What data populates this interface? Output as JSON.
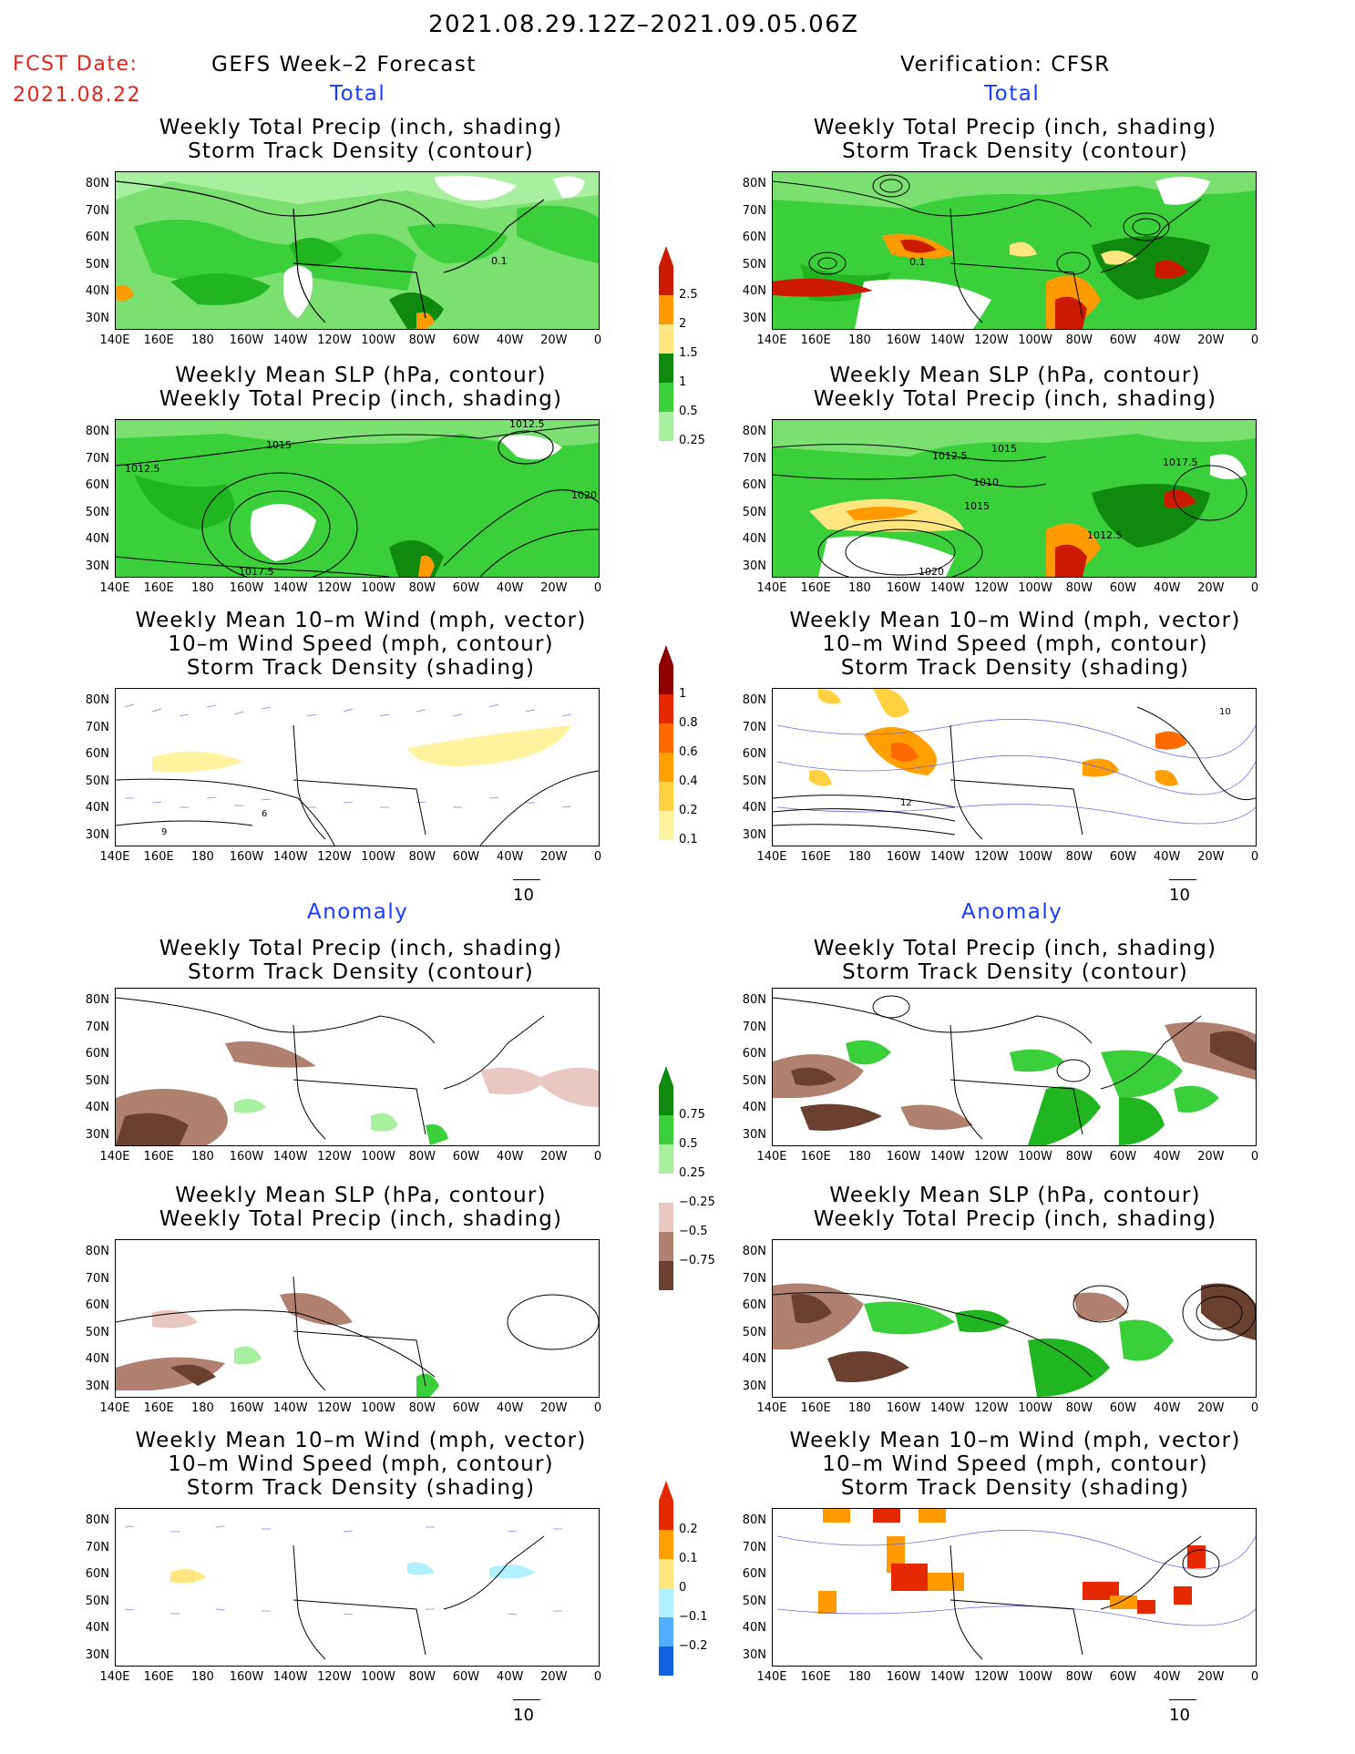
{
  "header": {
    "date_range": "2021.08.29.12Z–2021.09.05.06Z",
    "fcst_label": "FCST Date:",
    "fcst_date": "2021.08.22",
    "left_title": "GEFS Week–2 Forecast",
    "right_title": "Verification: CFSR",
    "total_label": "Total",
    "anomaly_label": "Anomaly"
  },
  "panel_titles": {
    "precip_track": [
      "Weekly Total Precip (inch, shading)",
      "Storm Track Density (contour)"
    ],
    "slp_precip": [
      "Weekly Mean SLP (hPa, contour)",
      "Weekly Total Precip (inch, shading)"
    ],
    "wind_track": [
      "Weekly Mean 10–m Wind (mph, vector)",
      "10–m Wind Speed (mph, contour)",
      "Storm Track Density (shading)"
    ]
  },
  "lat_labels": [
    "80N",
    "70N",
    "60N",
    "50N",
    "40N",
    "30N"
  ],
  "lon_labels": [
    "140E",
    "160E",
    "180",
    "160W",
    "140W",
    "120W",
    "100W",
    "80W",
    "60W",
    "40W",
    "20W",
    "0"
  ],
  "vector_ref": "10",
  "colorbars": {
    "precip_total": {
      "labels": [
        "2.5",
        "2",
        "1.5",
        "1",
        "0.5",
        "0.25"
      ],
      "colors": [
        "#cc1a00",
        "#ff9a00",
        "#ffe680",
        "#0f8a0f",
        "#3ccf3c",
        "#a8f0a0"
      ]
    },
    "track_total": {
      "labels": [
        "1",
        "0.8",
        "0.6",
        "0.4",
        "0.2",
        "0.1"
      ],
      "colors": [
        "#8c0000",
        "#e62800",
        "#ff6a00",
        "#ffa000",
        "#ffd040",
        "#fff3a0"
      ]
    },
    "precip_anom": {
      "labels": [
        "0.75",
        "0.5",
        "0.25",
        "−0.25",
        "−0.5",
        "−0.75"
      ],
      "colors": [
        "#0f8a0f",
        "#3ccf3c",
        "#a8f0a0",
        "#ffffff",
        "#e8c8c0",
        "#b08070",
        "#6a4030"
      ]
    },
    "track_anom": {
      "labels": [
        "0.2",
        "0.1",
        "0",
        "−0.1",
        "−0.2"
      ],
      "colors": [
        "#e62800",
        "#ffa000",
        "#ffe680",
        "#b0f0ff",
        "#50b0ff",
        "#1060e0"
      ]
    }
  },
  "contour_labels": {
    "l1": "0.1",
    "r1": "0.1",
    "l2": [
      "1015",
      "1012.5",
      "1012.5",
      "1020",
      "1017.5"
    ],
    "r2": [
      "1012.5",
      "1015",
      "1010",
      "1015",
      "1017.5",
      "1012.5",
      "1020"
    ],
    "l3": [
      "9",
      "6"
    ],
    "r3": [
      "12",
      "10"
    ]
  }
}
